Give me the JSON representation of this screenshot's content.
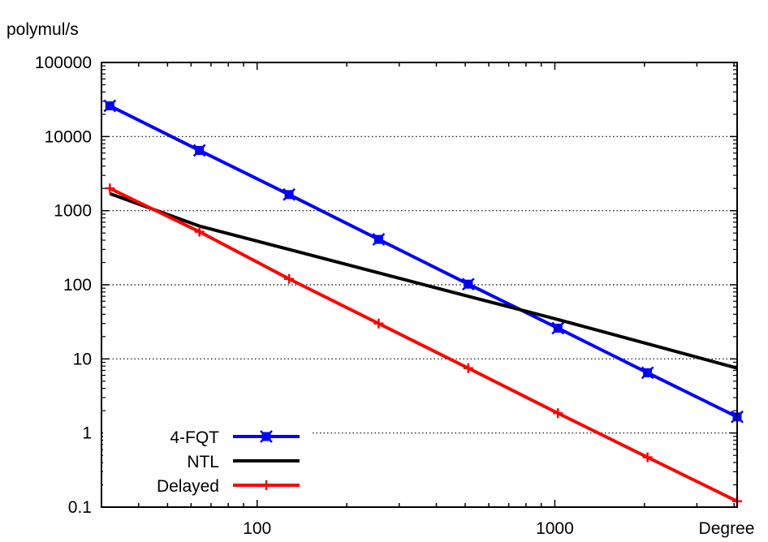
{
  "chart_data": {
    "type": "line",
    "title": "",
    "xlabel": "Degree",
    "ylabel": "polymul/s",
    "xscale": "log",
    "yscale": "log",
    "xlim": [
      30,
      4096
    ],
    "ylim": [
      0.1,
      100000
    ],
    "x_ticks": [
      {
        "value": 100,
        "label": "100"
      },
      {
        "value": 1000,
        "label": "1000"
      }
    ],
    "y_ticks": [
      {
        "value": 0.1,
        "label": "0.1"
      },
      {
        "value": 1,
        "label": "1"
      },
      {
        "value": 10,
        "label": "10"
      },
      {
        "value": 100,
        "label": "100"
      },
      {
        "value": 1000,
        "label": "1000"
      },
      {
        "value": 10000,
        "label": "10000"
      },
      {
        "value": 100000,
        "label": "100000"
      }
    ],
    "grid": "horizontal dotted",
    "legend_position": "bottom-left",
    "series": [
      {
        "name": "4-FQT",
        "color": "#0000ff",
        "marker": "x-square",
        "x": [
          32,
          64,
          128,
          256,
          512,
          1024,
          2048,
          4096
        ],
        "y": [
          26000,
          6500,
          1650,
          410,
          102,
          26,
          6.5,
          1.65
        ]
      },
      {
        "name": "NTL",
        "color": "#000000",
        "marker": "none",
        "x": [
          32,
          64,
          128,
          256,
          512,
          1024,
          2048,
          4096
        ],
        "y": [
          1700,
          620,
          300,
          145,
          70,
          34,
          16,
          7.5
        ]
      },
      {
        "name": "Delayed",
        "color": "#ff0000",
        "marker": "plus",
        "x": [
          32,
          64,
          128,
          256,
          512,
          1024,
          2048,
          4096
        ],
        "y": [
          2000,
          520,
          120,
          30,
          7.5,
          1.85,
          0.47,
          0.12
        ]
      }
    ]
  }
}
